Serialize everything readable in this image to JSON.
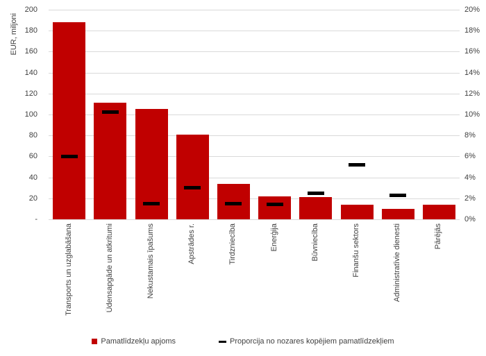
{
  "chart_data": {
    "type": "bar",
    "title": "",
    "categories": [
      "Transports un uzglabāšana",
      "Ūdensapgāde un atkritumi",
      "Nekustamais īpašums",
      "Apstrādes r.",
      "Tirdzniecība",
      "Enerģija",
      "Būvniecība",
      "Finanšu sektors",
      "Administratīvie dienesti",
      "Pārējās"
    ],
    "series": [
      {
        "name": "Pamatlīdzekļu apjoms",
        "type": "bar",
        "axis": "left",
        "color": "#c00000",
        "values": [
          188,
          111,
          105,
          81,
          34,
          22,
          21,
          14,
          10,
          14
        ]
      },
      {
        "name": "Proporcija no nozares kopējiem pamatlīdzekļiem",
        "type": "dash-marker",
        "axis": "right",
        "color": "#000000",
        "values_pct": [
          6.0,
          10.2,
          1.5,
          3.0,
          1.5,
          1.4,
          2.5,
          5.2,
          2.3,
          null
        ]
      }
    ],
    "left_axis": {
      "title": "EUR, miljoni",
      "min": 0,
      "max": 200,
      "step": 20,
      "tick_labels": [
        "200",
        "180",
        "160",
        "140",
        "120",
        "100",
        "80",
        "60",
        "40",
        "20",
        "-"
      ]
    },
    "right_axis": {
      "min": 0,
      "max": 20,
      "step": 2,
      "unit": "%",
      "tick_labels": [
        "20%",
        "18%",
        "16%",
        "14%",
        "12%",
        "10%",
        "8%",
        "6%",
        "4%",
        "2%",
        "0%"
      ]
    },
    "grid": true,
    "legend_position": "bottom"
  },
  "colors": {
    "bar": "#c00000",
    "marker": "#000000",
    "grid": "#d9d9d9",
    "text": "#3f3f3f",
    "background": "#ffffff"
  }
}
